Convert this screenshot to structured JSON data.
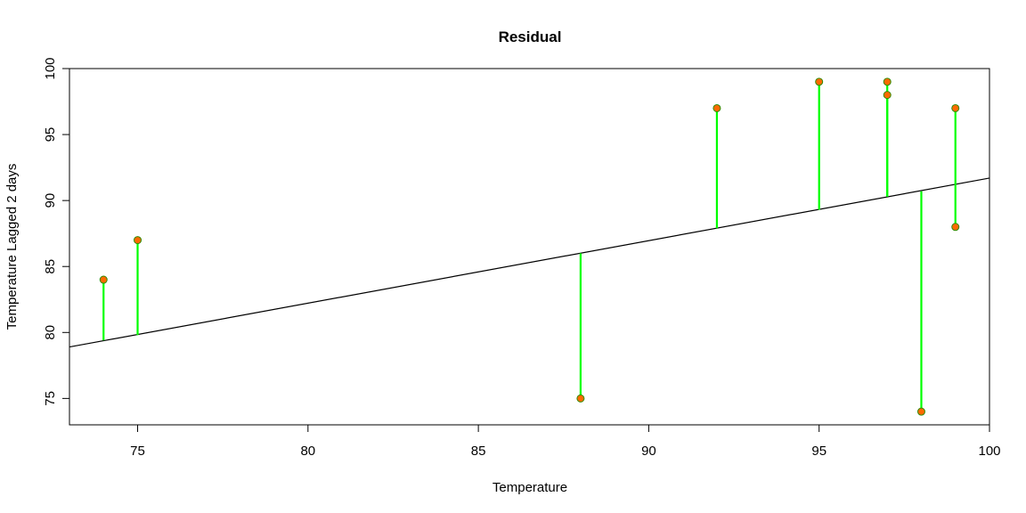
{
  "chart_data": {
    "type": "scatter",
    "title": "Residual",
    "xlabel": "Temperature",
    "ylabel": "Temperature Lagged 2 days",
    "xlim": [
      73,
      100
    ],
    "ylim": [
      73,
      100
    ],
    "xticks": [
      75,
      80,
      85,
      90,
      95,
      100
    ],
    "yticks": [
      75,
      80,
      85,
      90,
      95,
      100
    ],
    "grid": false,
    "series": [
      {
        "name": "observations",
        "x": [
          74,
          75,
          88,
          92,
          95,
          97,
          97,
          98,
          99,
          99
        ],
        "y": [
          84,
          87,
          75,
          97,
          99,
          99,
          98,
          74,
          97,
          88
        ],
        "point_fill": "#ff6a00",
        "point_stroke": "#2e8b00"
      }
    ],
    "fit_line": {
      "name": "regression line",
      "x": [
        73,
        100
      ],
      "y": [
        78.9,
        91.7
      ],
      "color": "#000000"
    },
    "residual_segments": {
      "color": "#00ff00",
      "fitted_y": [
        79.4,
        79.8,
        86.0,
        87.9,
        89.3,
        90.3,
        90.3,
        90.7,
        91.2,
        91.2
      ]
    }
  }
}
